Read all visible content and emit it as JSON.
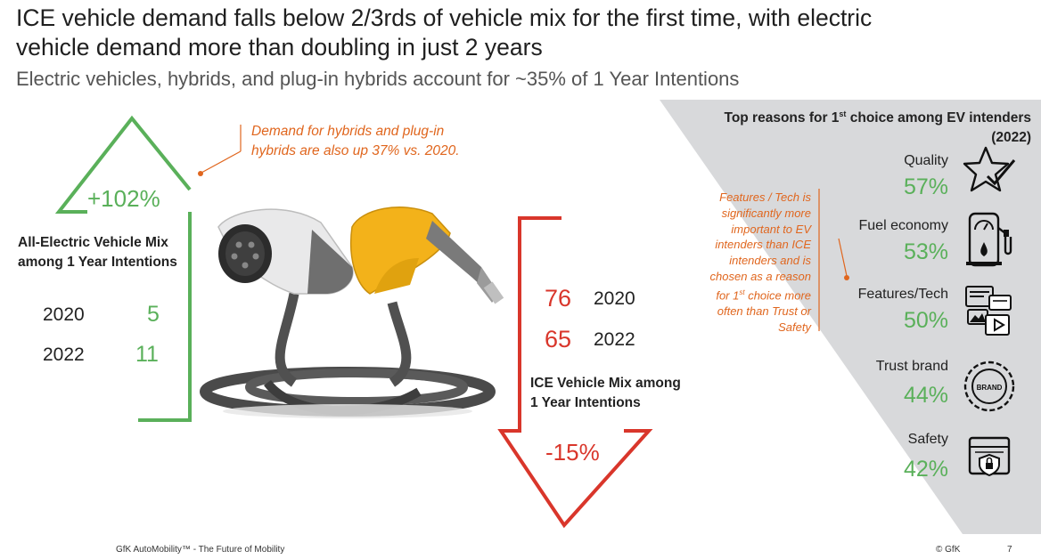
{
  "header": {
    "title": "ICE vehicle demand falls below 2/3rds of vehicle mix for the first time, with electric vehicle demand more than doubling in just 2 years",
    "subtitle": "Electric vehicles, hybrids, and plug-in hybrids account for ~35% of 1 Year Intentions"
  },
  "ev": {
    "change": "+102%",
    "label_line1": "All-Electric Vehicle Mix",
    "label_line2": "among 1 Year Intentions",
    "rows": [
      {
        "year": "2020",
        "value": "5"
      },
      {
        "year": "2022",
        "value": "11"
      }
    ]
  },
  "hybrid_note": {
    "line1": "Demand for hybrids and plug-in",
    "line2": "hybrids are also up 37% vs. 2020."
  },
  "ice": {
    "rows": [
      {
        "value": "76",
        "year": "2020"
      },
      {
        "value": "65",
        "year": "2022"
      }
    ],
    "label_line1": "ICE Vehicle Mix among",
    "label_line2": "1 Year Intentions",
    "change": "-15%"
  },
  "reasons": {
    "title_line1_pre": "Top reasons for 1",
    "title_sup": "st",
    "title_line1_post": " choice among EV intenders",
    "title_line2": "(2022)",
    "items": [
      {
        "label": "Quality",
        "pct": "57%",
        "icon": "star-check-icon"
      },
      {
        "label": "Fuel economy",
        "pct": "53%",
        "icon": "fuel-pump-icon"
      },
      {
        "label": "Features/Tech",
        "pct": "50%",
        "icon": "tech-features-icon"
      },
      {
        "label": "Trust brand",
        "pct": "44%",
        "icon": "brand-seal-icon"
      },
      {
        "label": "Safety",
        "pct": "42%",
        "icon": "safety-lock-icon"
      }
    ],
    "note": {
      "l1": "Features / Tech is",
      "l2": "significantly more",
      "l3": "important to EV",
      "l4": "intenders than ICE",
      "l5": "intenders and is",
      "l6": "chosen as a reason",
      "l7_pre": "for 1",
      "l7_sup": "st",
      "l7_post": " choice more",
      "l8": "often than Trust or",
      "l9": "Safety"
    }
  },
  "footer": {
    "left": "GfK AutoMobility™ - The Future of Mobility",
    "copyright": "© GfK",
    "page": "7"
  },
  "colors": {
    "ev_green": "#5ab05a",
    "ice_red": "#d9362b",
    "note_orange": "#e0661e",
    "panel_gray": "#d8d9db"
  }
}
